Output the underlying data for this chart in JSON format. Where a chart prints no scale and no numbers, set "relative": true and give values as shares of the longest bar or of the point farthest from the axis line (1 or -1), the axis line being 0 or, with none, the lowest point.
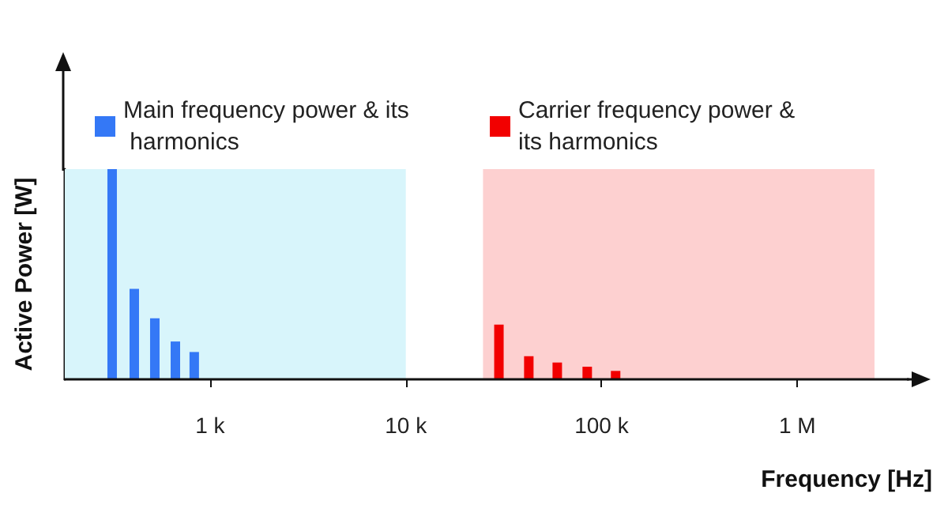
{
  "chart_data": {
    "type": "bar",
    "relative": true,
    "xlabel": "Frequency [Hz]",
    "ylabel": "Active Power [W]",
    "log": "x",
    "xlim": [
      181,
      3700000
    ],
    "xticks": [
      {
        "value": 1000,
        "label": "1 k"
      },
      {
        "value": 10000,
        "label": "10 k"
      },
      {
        "value": 100000,
        "label": "100 k"
      },
      {
        "value": 1000000,
        "label": "1 M"
      }
    ],
    "series": [
      {
        "name": "Main frequency power & its harmonics",
        "color": "#3478f6",
        "x": [
          316,
          410,
          522,
          665,
          830
        ],
        "values": [
          1,
          0.43,
          0.29,
          0.18,
          0.13
        ]
      },
      {
        "name": "Carrier frequency power & its harmonics",
        "color": "#f20000",
        "x": [
          29900,
          42500,
          59400,
          84500,
          118000
        ],
        "values": [
          0.26,
          0.11,
          0.08,
          0.06,
          0.04
        ]
      }
    ],
    "bands": [
      {
        "axis": "x",
        "from": 181,
        "to": 10000,
        "color": "#d8f5fb"
      },
      {
        "axis": "x",
        "from": 24800,
        "to": 2480000,
        "color": "#fdd0d0"
      }
    ],
    "legend": "top",
    "grid": false
  }
}
